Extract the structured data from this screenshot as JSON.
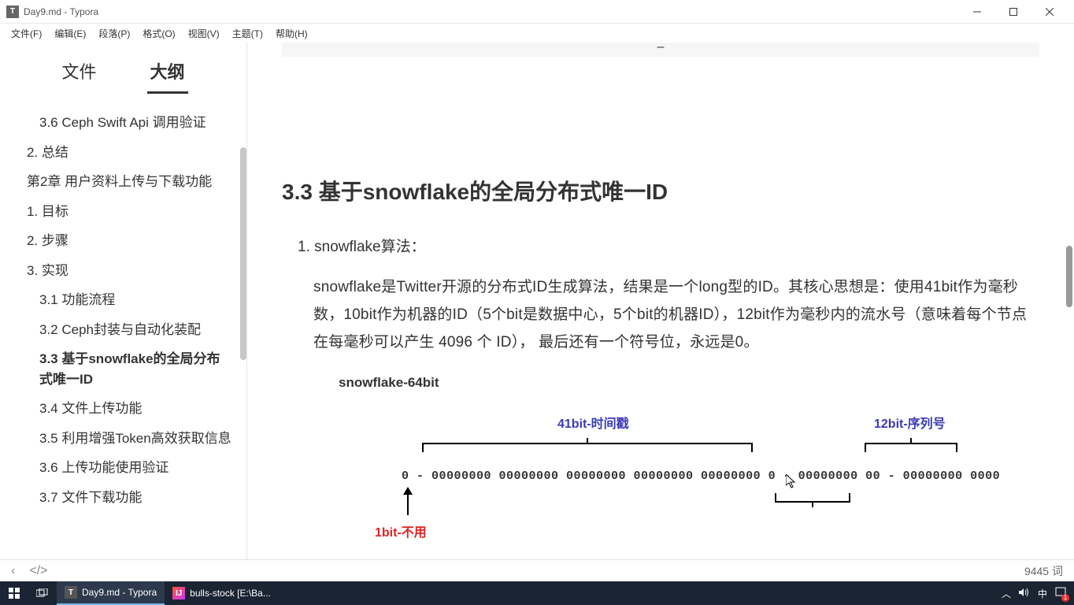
{
  "window": {
    "title": "Day9.md - Typora",
    "app_icon_letter": "T"
  },
  "menu": {
    "file": "文件(F)",
    "edit": "编辑(E)",
    "paragraph": "段落(P)",
    "format": "格式(O)",
    "view": "视图(V)",
    "theme": "主题(T)",
    "help": "帮助(H)"
  },
  "sidebar": {
    "tabs": {
      "files": "文件",
      "outline": "大纲"
    },
    "active_tab": 1,
    "items": [
      {
        "text": "3.6 Ceph Swift Api 调用验证",
        "indent": 2,
        "bold": false
      },
      {
        "text": "2. 总结",
        "indent": 1,
        "bold": false
      },
      {
        "text": "第2章 用户资料上传与下载功能",
        "indent": 1,
        "bold": false
      },
      {
        "text": "1. 目标",
        "indent": 1,
        "bold": false
      },
      {
        "text": "2. 步骤",
        "indent": 1,
        "bold": false
      },
      {
        "text": "3. 实现",
        "indent": 1,
        "bold": false
      },
      {
        "text": "3.1 功能流程",
        "indent": 2,
        "bold": false
      },
      {
        "text": "3.2 Ceph封装与自动化装配",
        "indent": 2,
        "bold": false
      },
      {
        "text": "3.3 基于snowflake的全局分布式唯一ID",
        "indent": 2,
        "bold": true
      },
      {
        "text": "3.4 文件上传功能",
        "indent": 2,
        "bold": false
      },
      {
        "text": "3.5 利用增强Token高效获取信息",
        "indent": 2,
        "bold": false
      },
      {
        "text": "3.6 上传功能使用验证",
        "indent": 2,
        "bold": false
      },
      {
        "text": "3.7 文件下载功能",
        "indent": 2,
        "bold": false
      }
    ]
  },
  "content": {
    "heading": "3.3 基于snowflake的全局分布式唯一ID",
    "list_item": "1. snowflake算法：",
    "paragraph": "snowflake是Twitter开源的分布式ID生成算法，结果是一个long型的ID。其核心思想是：使用41bit作为毫秒数，10bit作为机器的ID（5个bit是数据中心，5个bit的机器ID），12bit作为毫秒内的流水号（意味着每个节点在每毫秒可以产生 4096 个 ID），  最后还有一个符号位，永远是0。",
    "diagram": {
      "title": "snowflake-64bit",
      "label_time": "41bit-时间戳",
      "label_seq": "12bit-序列号",
      "label_unused": "1bit-不用",
      "bits": "0 - 00000000 00000000 00000000 00000000 00000000 0 - 00000000 00 - 00000000 0000",
      "colors": {
        "label": "#3a3ab8",
        "unused": "#d22222",
        "line": "#000000"
      }
    }
  },
  "statusbar": {
    "back": "‹",
    "tag": "</>",
    "words": "9445 词"
  },
  "taskbar": {
    "typora": "Day9.md - Typora",
    "idea": "bulls-stock [E:\\Ba...",
    "ime": "中",
    "notif_badge": "1"
  }
}
